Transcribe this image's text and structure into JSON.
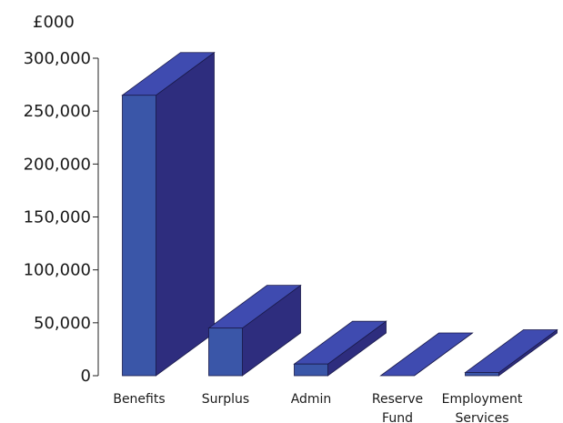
{
  "chart_data": {
    "type": "bar",
    "unit_label": "£000",
    "categories": [
      [
        "Benefits"
      ],
      [
        "Surplus"
      ],
      [
        "Admin"
      ],
      [
        "Reserve",
        "Fund"
      ],
      [
        "Employment",
        "Services"
      ]
    ],
    "values": [
      265000,
      45000,
      11000,
      0,
      3000
    ],
    "yticks": [
      "0",
      "50,000",
      "100,000",
      "150,000",
      "200,000",
      "250,000",
      "300,000"
    ],
    "ylim": [
      0,
      300000
    ],
    "colors": {
      "front": "#3a56a8",
      "side": "#2e2d7e",
      "top": "#3f4bb0",
      "edge": "#1a1a4a"
    }
  }
}
